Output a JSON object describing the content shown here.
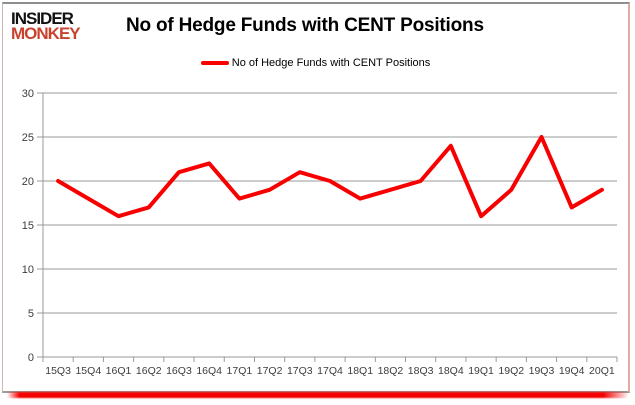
{
  "brand": {
    "line1": "INSIDER",
    "line2": "MONKEY"
  },
  "header": {
    "title": "No of Hedge Funds with CENT Positions"
  },
  "legend": {
    "label": "No of Hedge Funds with CENT Positions"
  },
  "chart_data": {
    "type": "line",
    "title": "No of Hedge Funds with CENT Positions",
    "categories": [
      "15Q3",
      "15Q4",
      "16Q1",
      "16Q2",
      "16Q3",
      "16Q4",
      "17Q1",
      "17Q2",
      "17Q3",
      "17Q4",
      "18Q1",
      "18Q2",
      "18Q3",
      "18Q4",
      "19Q1",
      "19Q2",
      "19Q3",
      "19Q4",
      "20Q1"
    ],
    "series": [
      {
        "name": "No of Hedge Funds with CENT Positions",
        "values": [
          20,
          18,
          16,
          17,
          21,
          22,
          18,
          19,
          21,
          20,
          18,
          19,
          20,
          24,
          16,
          19,
          25,
          17,
          19
        ]
      }
    ],
    "xlabel": "",
    "ylabel": "",
    "ylim": [
      0,
      30
    ],
    "yticks": [
      0,
      5,
      10,
      15,
      20,
      25,
      30
    ],
    "grid": "horizontal",
    "legend_position": "top"
  },
  "colors": {
    "line_red": "#f80000",
    "logo_red": "#c8432e",
    "gridline": "#9a9a9a",
    "axis_line": "#9a9a9a",
    "tick_label": "#3d3d3d",
    "bottom_bar_red": "#f40000"
  }
}
